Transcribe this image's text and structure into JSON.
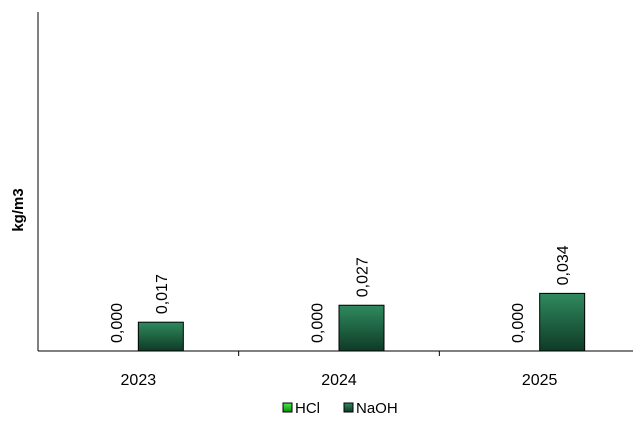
{
  "chart_data": {
    "type": "bar",
    "title": "",
    "xlabel": "",
    "ylabel": "kg/m3",
    "ylim": [
      0,
      0.2
    ],
    "grid": false,
    "legend_position": "bottom",
    "categories": [
      "2023",
      "2024",
      "2025"
    ],
    "series": [
      {
        "name": "HCl",
        "color": "#22dd22",
        "values": [
          0.0,
          0.0,
          0.0
        ],
        "labels": [
          "0,000",
          "0,000",
          "0,000"
        ]
      },
      {
        "name": "NaOH",
        "color": "#1f6b4a",
        "values": [
          0.017,
          0.027,
          0.034
        ],
        "labels": [
          "0,017",
          "0,027",
          "0,034"
        ]
      }
    ]
  }
}
